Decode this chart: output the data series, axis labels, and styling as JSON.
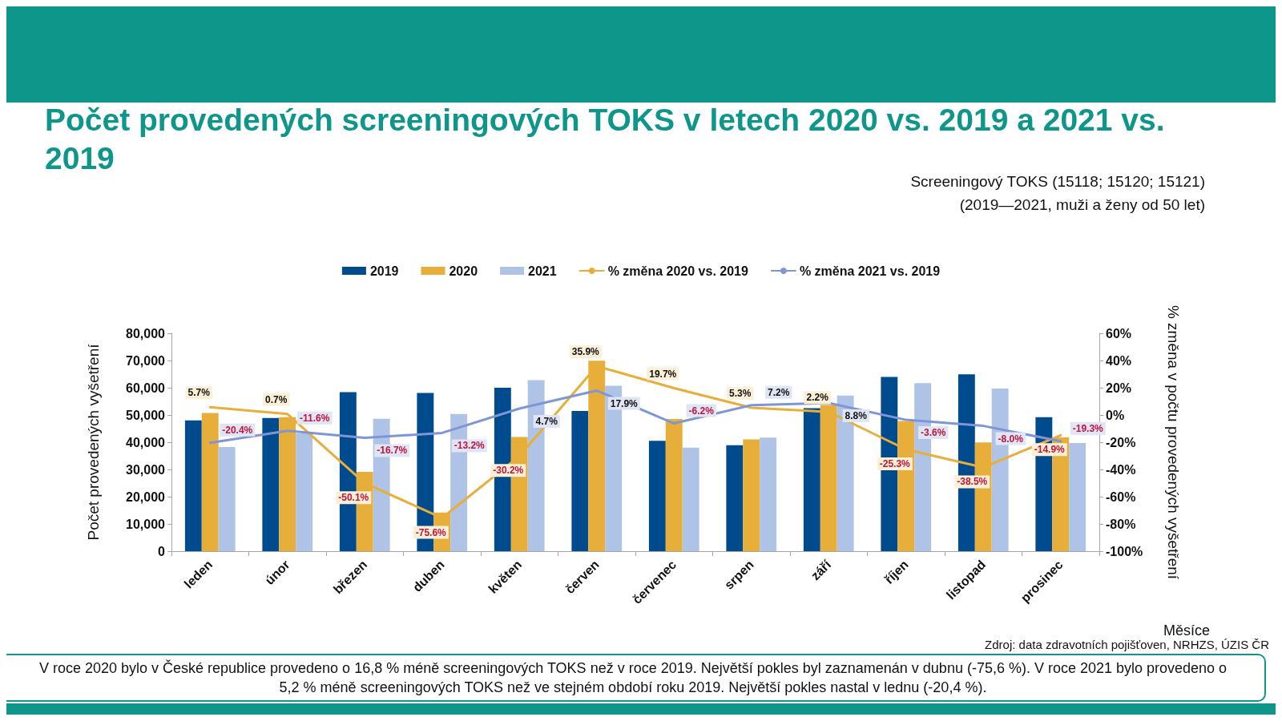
{
  "chart_data": {
    "type": "bar",
    "title": "Počet provedených screeningových TOKS v letech 2020 vs. 2019 a 2021 vs. 2019",
    "subtitle": "Screeningový TOKS (15118; 15120; 15121)\n(2019—2021, muži a ženy od 50 let)",
    "xlabel": "Měsíce",
    "ylabel": "Počet provedených vyšetření",
    "y2label": "% změna v počtu provedených vyšetření",
    "categories": [
      "leden",
      "únor",
      "březen",
      "duben",
      "květen",
      "červen",
      "červenec",
      "srpen",
      "září",
      "říjen",
      "listopad",
      "prosinec"
    ],
    "series": [
      {
        "name": "2019",
        "color": "#004b8d",
        "values": [
          48000,
          48900,
          58400,
          58100,
          60000,
          51500,
          40500,
          38900,
          52500,
          64000,
          64900,
          49200
        ]
      },
      {
        "name": "2020",
        "color": "#e8ae3a",
        "values": [
          50700,
          49200,
          29100,
          14200,
          41900,
          69900,
          48500,
          41000,
          53700,
          47800,
          39900,
          41800
        ]
      },
      {
        "name": "2021",
        "color": "#aec3e6",
        "values": [
          38200,
          43200,
          48600,
          50400,
          62800,
          60700,
          38000,
          41700,
          57100,
          61700,
          59700,
          39700
        ]
      },
      {
        "name": "% změna 2020 vs. 2019",
        "type": "line",
        "axis": "y2",
        "color": "#e8ae3a",
        "values": [
          5.7,
          0.7,
          -50.1,
          -75.6,
          -30.2,
          35.9,
          19.7,
          5.3,
          2.2,
          -25.3,
          -38.5,
          -14.9
        ],
        "value_labels": [
          "5.7%",
          "0.7%",
          "-50.1%",
          "-75.6%",
          "-30.2%",
          "35.9%",
          "19.7%",
          "5.3%",
          "2.2%",
          "-25.3%",
          "-38.5%",
          "-14.9%"
        ]
      },
      {
        "name": "% změna 2021 vs. 2019",
        "type": "line",
        "axis": "y2",
        "color": "#7f96d6",
        "values": [
          -20.4,
          -11.6,
          -16.7,
          -13.2,
          4.7,
          17.9,
          -6.2,
          7.2,
          8.8,
          -3.6,
          -8.0,
          -19.3
        ],
        "value_labels": [
          "-20.4%",
          "-11.6%",
          "-16.7%",
          "-13.2%",
          "4.7%",
          "17.9%",
          "-6.2%",
          "7.2%",
          "8.8%",
          "-3.6%",
          "-8.0%",
          "-19.3%"
        ]
      }
    ],
    "ylim": [
      0,
      80000
    ],
    "yticks": [
      0,
      {
        "value": 10000,
        "label": "10,000"
      },
      {
        "value": 20000,
        "label": "20,000"
      },
      {
        "value": 30000,
        "label": "30,000"
      },
      {
        "value": 40000,
        "label": "40,000"
      },
      {
        "value": 50000,
        "label": "50,000"
      },
      {
        "value": 60000,
        "label": "60,000"
      },
      {
        "value": 70000,
        "label": "70,000"
      },
      {
        "value": 80000,
        "label": "80,000"
      }
    ],
    "y2lim": [
      -100,
      60
    ],
    "y2ticks": [
      {
        "value": -100,
        "label": "-100%"
      },
      {
        "value": -80,
        "label": "-80%"
      },
      {
        "value": -60,
        "label": "-60%"
      },
      {
        "value": -40,
        "label": "-40%"
      },
      {
        "value": -20,
        "label": "-20%"
      },
      {
        "value": 0,
        "label": "0%"
      },
      {
        "value": 20,
        "label": "20%"
      },
      {
        "value": 40,
        "label": "40%"
      },
      {
        "value": 60,
        "label": "60%"
      }
    ],
    "grid": false,
    "legend": "top",
    "marker": "none",
    "line_style": "solid",
    "annotations": [
      "Zdroj: data zdravotních pojišťoven, NRHZS, ÚZIS ČR",
      "V roce 2020 bylo v České republice provedeno o 16,8 % méně screeningových TOKS než v roce 2019.  Největší pokles byl zaznamenán v dubnu (-75,6 %). V roce 2021 bylo provedeno o 5,2 % méně screeningových TOKS než ve stejném období roku 2019. Největší pokles nastal v lednu (-20,4 %)."
    ]
  }
}
